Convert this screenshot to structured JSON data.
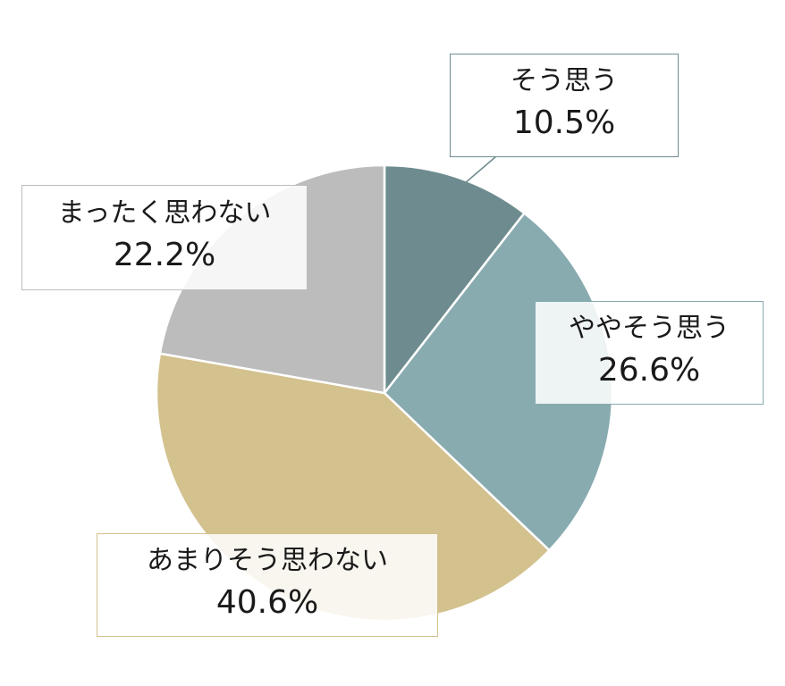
{
  "chart_data": {
    "type": "pie",
    "title": "",
    "categories": [
      "そう思う",
      "ややそう思う",
      "あまりそう思わない",
      "まったく思わない"
    ],
    "values": [
      10.5,
      26.6,
      40.6,
      22.2
    ],
    "value_labels": [
      "10.5%",
      "26.6%",
      "40.6%",
      "22.2%"
    ],
    "colors": [
      "#6e8c8f",
      "#88abb0",
      "#d3c18e",
      "#bcbcbc"
    ],
    "start": "12 o'clock",
    "direction": "clockwise",
    "legend": "none",
    "label_style": "callout boxes with category and percentage"
  }
}
